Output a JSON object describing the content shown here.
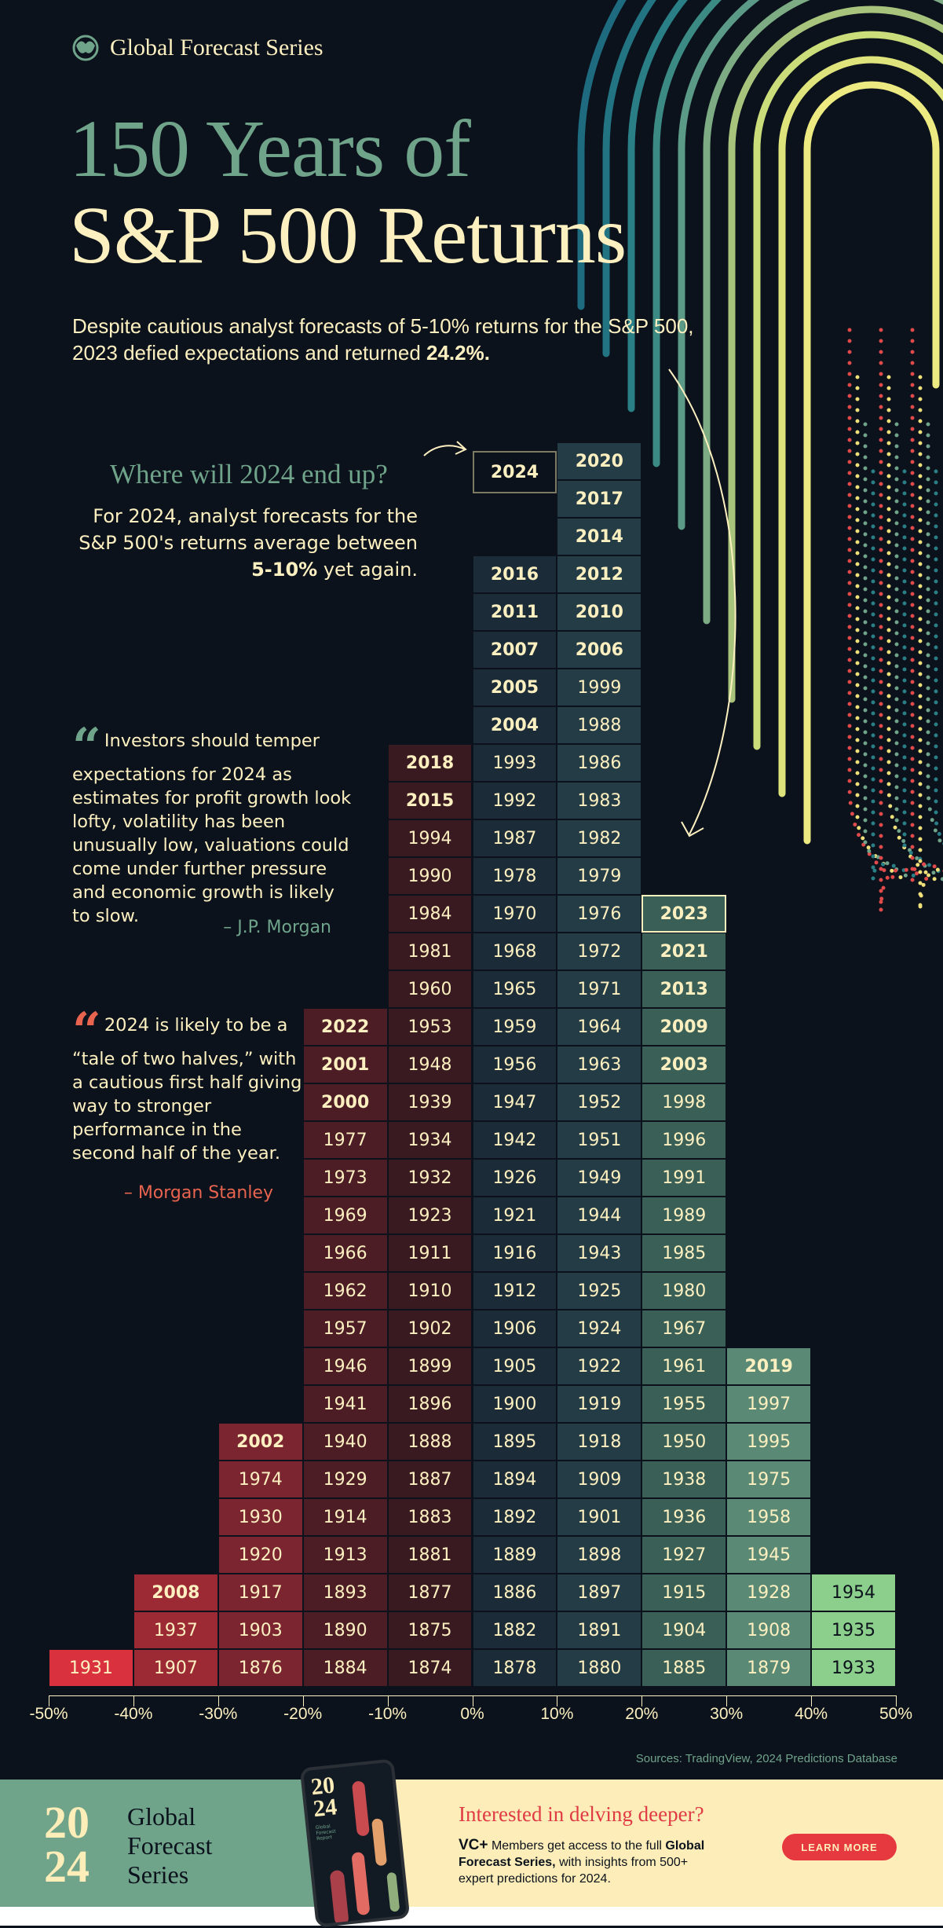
{
  "header": {
    "series_label": "Global Forecast Series",
    "title_line1": "150 Years of",
    "title_line2": "S&P 500 Returns",
    "subtitle_text": "Despite cautious analyst forecasts of 5-10% returns for the S&P 500, 2023 defied expectations and returned ",
    "subtitle_bold": "24.2%."
  },
  "forecast": {
    "heading": "Where will 2024 end up?",
    "text": "For 2024, analyst forecasts for the S&P 500's returns average between ",
    "bold": "5-10%",
    "text_end": " yet again."
  },
  "quotes": [
    {
      "text": "Investors should temper expectations for 2024 as estimates for profit growth look lofty, volatility has been unusually low, valuations could come under further pressure and economic growth is likely to slow.",
      "author": "– J.P. Morgan",
      "color": "#6fa38a"
    },
    {
      "text": "2024 is likely to be a “tale of two halves,” with a cautious first half giving way to stronger performance in the second half of the year.",
      "author": "– Morgan Stanley",
      "color": "#e8644f"
    }
  ],
  "chart_data": {
    "type": "histogram",
    "xlabel": "",
    "ylabel": "",
    "xlim": [
      -50,
      50
    ],
    "tick_labels": [
      "-50%",
      "-40%",
      "-30%",
      "-20%",
      "-10%",
      "0%",
      "10%",
      "20%",
      "30%",
      "40%",
      "50%"
    ],
    "bins": [
      {
        "range": [
          -50,
          -40
        ],
        "color": "#d9323e",
        "years": [
          1931
        ]
      },
      {
        "range": [
          -40,
          -30
        ],
        "color": "#9c2a35",
        "years": [
          1907,
          1937,
          2008
        ]
      },
      {
        "range": [
          -30,
          -20
        ],
        "color": "#7a2530",
        "years": [
          1876,
          1903,
          1917,
          1920,
          1930,
          1974,
          2002
        ]
      },
      {
        "range": [
          -20,
          -10
        ],
        "color": "#4c1d25",
        "years": [
          1884,
          1890,
          1893,
          1913,
          1914,
          1929,
          1940,
          1941,
          1946,
          1957,
          1962,
          1966,
          1969,
          1973,
          1977,
          2000,
          2001,
          2022
        ]
      },
      {
        "range": [
          -10,
          0
        ],
        "color": "#3a1a21",
        "years": [
          1874,
          1875,
          1877,
          1881,
          1883,
          1887,
          1888,
          1896,
          1899,
          1902,
          1910,
          1911,
          1923,
          1932,
          1934,
          1939,
          1948,
          1953,
          1960,
          1981,
          1984,
          1990,
          1994,
          2015,
          2018
        ]
      },
      {
        "range": [
          0,
          10
        ],
        "color": "#1b2b37",
        "years": [
          1878,
          1882,
          1886,
          1889,
          1892,
          1894,
          1895,
          1900,
          1905,
          1906,
          1912,
          1916,
          1921,
          1926,
          1942,
          1947,
          1956,
          1959,
          1965,
          1968,
          1970,
          1978,
          1987,
          1992,
          1993,
          2004,
          2005,
          2007,
          2011,
          2016
        ]
      },
      {
        "range": [
          10,
          20
        ],
        "color": "#243c45",
        "years": [
          1880,
          1891,
          1897,
          1898,
          1901,
          1909,
          1918,
          1919,
          1922,
          1924,
          1925,
          1943,
          1944,
          1949,
          1951,
          1952,
          1963,
          1964,
          1971,
          1972,
          1976,
          1979,
          1982,
          1983,
          1986,
          1988,
          1999,
          2006,
          2010,
          2012,
          2014,
          2017,
          2020
        ]
      },
      {
        "range": [
          20,
          30
        ],
        "color": "#3a5f56",
        "years": [
          1885,
          1904,
          1915,
          1927,
          1936,
          1938,
          1950,
          1955,
          1961,
          1967,
          1980,
          1985,
          1989,
          1991,
          1996,
          1998,
          2003,
          2009,
          2013,
          2021,
          2023
        ]
      },
      {
        "range": [
          30,
          40
        ],
        "color": "#5a8a76",
        "years": [
          1879,
          1908,
          1928,
          1945,
          1958,
          1975,
          1995,
          1997,
          2019
        ]
      },
      {
        "range": [
          40,
          50
        ],
        "color": "#8ccf8c",
        "years": [
          1933,
          1935,
          1954
        ]
      }
    ],
    "highlighted": {
      "year": "2023",
      "value_percent": 24.2
    },
    "forecast_marker": {
      "year": "2024",
      "range": [
        0,
        10
      ]
    }
  },
  "sources": "Sources: TradingView, 2024 Predictions Database",
  "footer": {
    "year_top": "20",
    "year_bottom": "24",
    "name_lines": [
      "Global",
      "Forecast",
      "Series"
    ],
    "heading": "Interested in delving deeper?",
    "vc_logo": "VC+",
    "body_pre": " Members get access to the full ",
    "body_bold": "Global Forecast Series,",
    "body_post": " with insights from 500+ expert predictions for 2024.",
    "button": "LEARN MORE",
    "phone_text": "2024",
    "phone_sub": "Global Forecast Report"
  },
  "colors": {
    "background": "#0b121c",
    "cream": "#fdf0c0",
    "green": "#6fa38a",
    "red": "#e5383f"
  }
}
